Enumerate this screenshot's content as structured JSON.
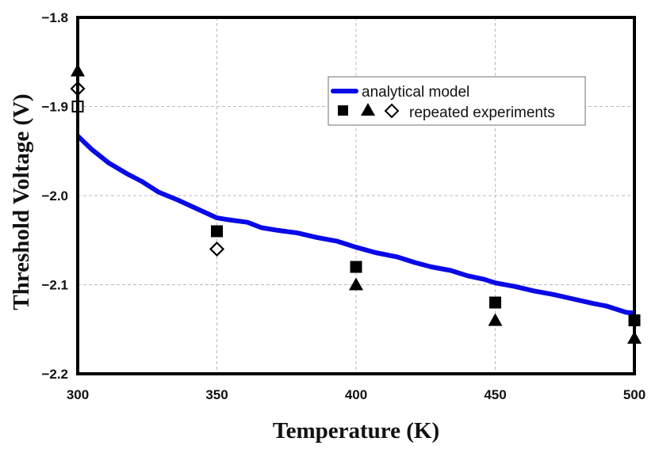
{
  "chart_data": {
    "type": "line",
    "title": "",
    "xlabel": "Temperature (K)",
    "ylabel": "Threshold Voltage (V)",
    "xlim": [
      300,
      500
    ],
    "ylim": [
      -2.2,
      -1.8
    ],
    "x_ticks": [
      300,
      350,
      400,
      450,
      500
    ],
    "x_tick_labels": [
      "300",
      "350",
      "400",
      "450",
      "500"
    ],
    "y_ticks": [
      -1.8,
      -1.9,
      -2.0,
      -2.1,
      -2.2
    ],
    "y_tick_labels": [
      "−1.8",
      "−1.9",
      "−2.0",
      "−2.1",
      "−2.2"
    ],
    "grid": true,
    "legend_position": "top-right",
    "legend": [
      {
        "label": "analytical model",
        "marker": "line"
      },
      {
        "label": "repeated experiments",
        "marker": "square-triangle-diamond"
      }
    ],
    "series": [
      {
        "name": "analytical model",
        "kind": "line",
        "color": "#0a0ae6",
        "x": [
          300,
          305,
          311,
          318,
          323,
          329,
          336,
          343,
          350,
          354,
          361,
          366,
          372,
          379,
          386,
          393,
          400,
          407,
          415,
          421,
          427,
          434,
          440,
          446,
          450,
          457,
          464,
          471,
          478,
          485,
          490,
          497,
          500
        ],
        "y": [
          -1.933,
          -1.948,
          -1.963,
          -1.976,
          -1.984,
          -1.996,
          -2.005,
          -2.015,
          -2.025,
          -2.027,
          -2.03,
          -2.036,
          -2.039,
          -2.042,
          -2.047,
          -2.051,
          -2.058,
          -2.064,
          -2.069,
          -2.075,
          -2.08,
          -2.084,
          -2.09,
          -2.094,
          -2.098,
          -2.102,
          -2.107,
          -2.111,
          -2.116,
          -2.121,
          -2.124,
          -2.131,
          -2.132
        ]
      },
      {
        "name": "repeated experiments (square)",
        "kind": "scatter",
        "marker": "square",
        "color": "#000000",
        "x": [
          300,
          350,
          400,
          450,
          500
        ],
        "y": [
          -1.9,
          -2.04,
          -2.08,
          -2.12,
          -2.14
        ]
      },
      {
        "name": "repeated experiments (triangle)",
        "kind": "scatter",
        "marker": "triangle",
        "color": "#000000",
        "x": [
          300,
          400,
          450,
          500
        ],
        "y": [
          -1.86,
          -2.1,
          -2.14,
          -2.16
        ]
      },
      {
        "name": "repeated experiments (diamond)",
        "kind": "scatter",
        "marker": "diamond",
        "color": "#000000",
        "x": [
          300,
          350
        ],
        "y": [
          -1.88,
          -2.06
        ]
      }
    ]
  }
}
